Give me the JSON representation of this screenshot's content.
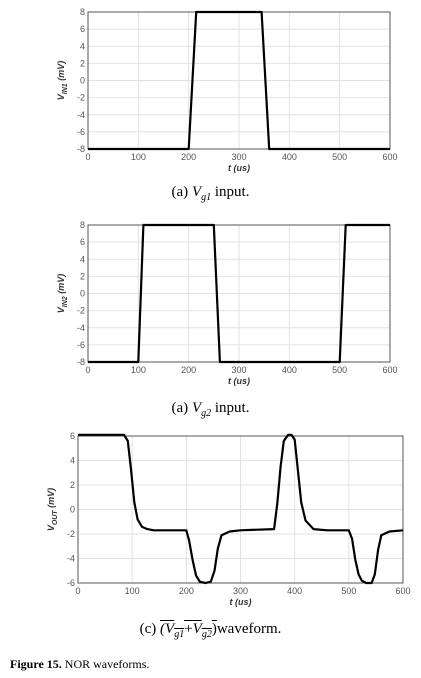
{
  "chart_data": [
    {
      "type": "line",
      "caption": {
        "prefix": "(a) ",
        "symbol": "V",
        "sub": "g1",
        "suffix": " input."
      },
      "ylabel": {
        "main": "V",
        "sub": "IN1",
        "unit": " (mV)"
      },
      "xlabel": "t (us)",
      "xlim": [
        0,
        600
      ],
      "ylim": [
        -8,
        8
      ],
      "xticks": [
        0,
        100,
        200,
        300,
        400,
        500,
        600
      ],
      "yticks": [
        8,
        6,
        4,
        2,
        0,
        -2,
        -4,
        -6,
        -8
      ],
      "grid": true,
      "series": [
        {
          "x": [
            0,
            200,
            215,
            345,
            360,
            600
          ],
          "y": [
            -8,
            -8,
            8,
            8,
            -8,
            -8
          ]
        }
      ]
    },
    {
      "type": "line",
      "caption": {
        "prefix": "(a) ",
        "symbol": "V",
        "sub": "g2",
        "suffix": " input."
      },
      "ylabel": {
        "main": "V",
        "sub": "IN2",
        "unit": " (mV)"
      },
      "xlabel": "t (us)",
      "xlim": [
        0,
        600
      ],
      "ylim": [
        -8,
        8
      ],
      "xticks": [
        0,
        100,
        200,
        300,
        400,
        500,
        600
      ],
      "yticks": [
        8,
        6,
        4,
        2,
        0,
        -2,
        -4,
        -6,
        -8
      ],
      "grid": true,
      "series": [
        {
          "x": [
            0,
            100,
            110,
            250,
            262,
            500,
            512,
            600
          ],
          "y": [
            -8,
            -8,
            8,
            8,
            -8,
            -8,
            8,
            8
          ]
        }
      ]
    },
    {
      "type": "line",
      "caption": {
        "prefix": "(c) ",
        "overline": "(Vg1+Vg2)",
        "suffix": "waveform."
      },
      "ylabel": {
        "main": "V",
        "sub": "OUT",
        "unit": " (mV)"
      },
      "xlabel": "t (us)",
      "xlim": [
        0,
        600
      ],
      "ylim": [
        -6,
        6
      ],
      "xticks": [
        0,
        100,
        200,
        300,
        400,
        500,
        600
      ],
      "yticks": [
        6,
        4,
        2,
        0,
        -2,
        -4,
        -6
      ],
      "grid": true,
      "series": [
        {
          "x": [
            0,
            85,
            92,
            98,
            104,
            110,
            118,
            128,
            140,
            160,
            200,
            205,
            212,
            218,
            225,
            235,
            245,
            252,
            258,
            265,
            280,
            300,
            362,
            368,
            374,
            380,
            388,
            394,
            400,
            406,
            412,
            420,
            435,
            460,
            500,
            506,
            512,
            518,
            524,
            532,
            542,
            548,
            554,
            560,
            575,
            600
          ],
          "y": [
            6.1,
            6.1,
            5.6,
            3.2,
            0.6,
            -0.8,
            -1.4,
            -1.6,
            -1.7,
            -1.7,
            -1.7,
            -2.5,
            -4.2,
            -5.4,
            -5.9,
            -6.0,
            -5.9,
            -5.0,
            -3.2,
            -2.1,
            -1.8,
            -1.7,
            -1.6,
            0.5,
            3.5,
            5.6,
            6.1,
            6.1,
            5.7,
            3.2,
            0.6,
            -0.9,
            -1.6,
            -1.7,
            -1.7,
            -2.4,
            -4.1,
            -5.3,
            -5.8,
            -6.0,
            -6.0,
            -5.3,
            -3.3,
            -2.1,
            -1.8,
            -1.7
          ]
        }
      ]
    }
  ],
  "figure_caption": {
    "label": "Figure 15.",
    "text": " NOR waveforms."
  }
}
